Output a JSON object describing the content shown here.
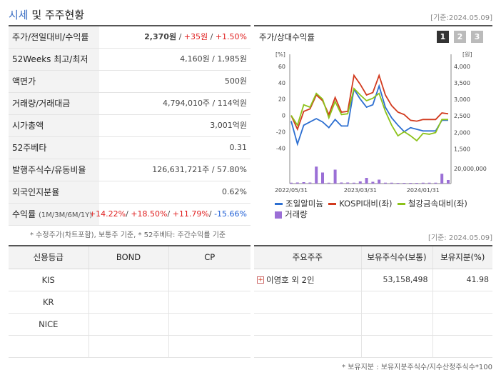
{
  "header": {
    "title_main": "시세",
    "title_rest": " 및 주주현황",
    "basis": "[기준:2024.05.09]"
  },
  "market": {
    "rows": [
      {
        "label": "주가/전일대비/수익률",
        "value_price": "2,370원",
        "sep1": " / ",
        "value_change": "+35원",
        "sep2": " / ",
        "value_rate": "+1.50%"
      },
      {
        "label": "52Weeks 최고/최저",
        "value": "4,160원 / 1,985원"
      },
      {
        "label": "액면가",
        "value": "500원"
      },
      {
        "label": "거래량/거래대금",
        "value": "4,794,010주 / 114억원"
      },
      {
        "label": "시가총액",
        "value": "3,001억원"
      },
      {
        "label": "52주베타",
        "value": "0.31"
      },
      {
        "label": "발행주식수/유동비율",
        "value": "126,631,721주 / 57.80%"
      },
      {
        "label": "외국인지분율",
        "value": "0.62%"
      }
    ],
    "returns": {
      "label": "수익률",
      "label_sub": "(1M/3M/6M/1Y)",
      "r1": "+14.22%",
      "r2": "+18.50%",
      "r3": "+11.79%",
      "r4": "-15.66%",
      "sep": "/ "
    },
    "note": "* 수정주가(차트포함), 보통주 기준, * 52주베타: 주간수익률 기준"
  },
  "chart": {
    "title": "주가/상대수익률",
    "period_buttons": [
      "1",
      "2",
      "3"
    ],
    "left_unit": "[%]",
    "right_unit": "[원]",
    "volume_label": "20,000,000",
    "colors": {
      "stock": "#2d6fd1",
      "kospi": "#d23a1e",
      "sector": "#8cc21a",
      "volume": "#9b6fd6"
    },
    "legend": {
      "stock": "조일알미늄",
      "kospi": "KOSPI대비(좌)",
      "sector": "철강금속대비(좌)",
      "volume": "거래량"
    }
  },
  "chart_data": {
    "type": "line",
    "title": "주가/상대수익률",
    "x_ticks": [
      "2022/05/31",
      "2023/03/31",
      "2024/01/31"
    ],
    "left_axis": {
      "label": "[%]",
      "ticks": [
        60,
        40,
        20,
        0,
        -20,
        -40
      ],
      "range": [
        -45,
        60
      ]
    },
    "right_axis": {
      "label": "[원]",
      "ticks": [
        4000,
        3500,
        3000,
        2500,
        2000,
        1500
      ],
      "range": [
        1400,
        4000
      ]
    },
    "series": [
      {
        "name": "조일알미늄",
        "axis": "left",
        "values": [
          -7,
          -35,
          -12,
          -8,
          -4,
          -8,
          -15,
          -5,
          -13,
          -13,
          32,
          20,
          10,
          13,
          36,
          10,
          -3,
          -12,
          -20,
          -15,
          -17,
          -19,
          -19,
          -19,
          -6,
          -6
        ]
      },
      {
        "name": "KOSPI대비(좌)",
        "axis": "left",
        "values": [
          0,
          -17,
          5,
          8,
          25,
          18,
          1,
          22,
          4,
          5,
          49,
          38,
          25,
          28,
          49,
          25,
          12,
          4,
          1,
          -6,
          -7,
          -5,
          -5,
          -5,
          3,
          2
        ]
      },
      {
        "name": "철강금속대비(좌)",
        "axis": "left",
        "values": [
          0,
          -12,
          13,
          10,
          27,
          20,
          -3,
          17,
          1,
          2,
          33,
          25,
          18,
          21,
          27,
          5,
          -12,
          -25,
          -20,
          -25,
          -31,
          -22,
          -23,
          -21,
          -5,
          -5
        ]
      }
    ],
    "volume": {
      "label": "거래량",
      "tick": "20,000,000",
      "values": [
        0.05,
        0.06,
        0.08,
        0.06,
        0.95,
        0.62,
        0.05,
        0.78,
        0.06,
        0.06,
        0.05,
        0.12,
        0.32,
        0.1,
        0.22,
        0.05,
        0.05,
        0.04,
        0.04,
        0.04,
        0.04,
        0.05,
        0.05,
        0.05,
        0.55,
        0.2
      ]
    }
  },
  "credit": {
    "basis": "[기준: 2024.05.09]",
    "headers": [
      "신용등급",
      "BOND",
      "CP"
    ],
    "rows": [
      "KIS",
      "KR",
      "NICE",
      ""
    ]
  },
  "holders": {
    "headers": [
      "주요주주",
      "보유주식수(보통)",
      "보유지분(%)"
    ],
    "rows": [
      {
        "name": "이영호 외 2인",
        "shares": "53,158,498",
        "pct": "41.98"
      }
    ],
    "note": "* 보유지분 : 보유지분주식수/지수산정주식수*100"
  }
}
